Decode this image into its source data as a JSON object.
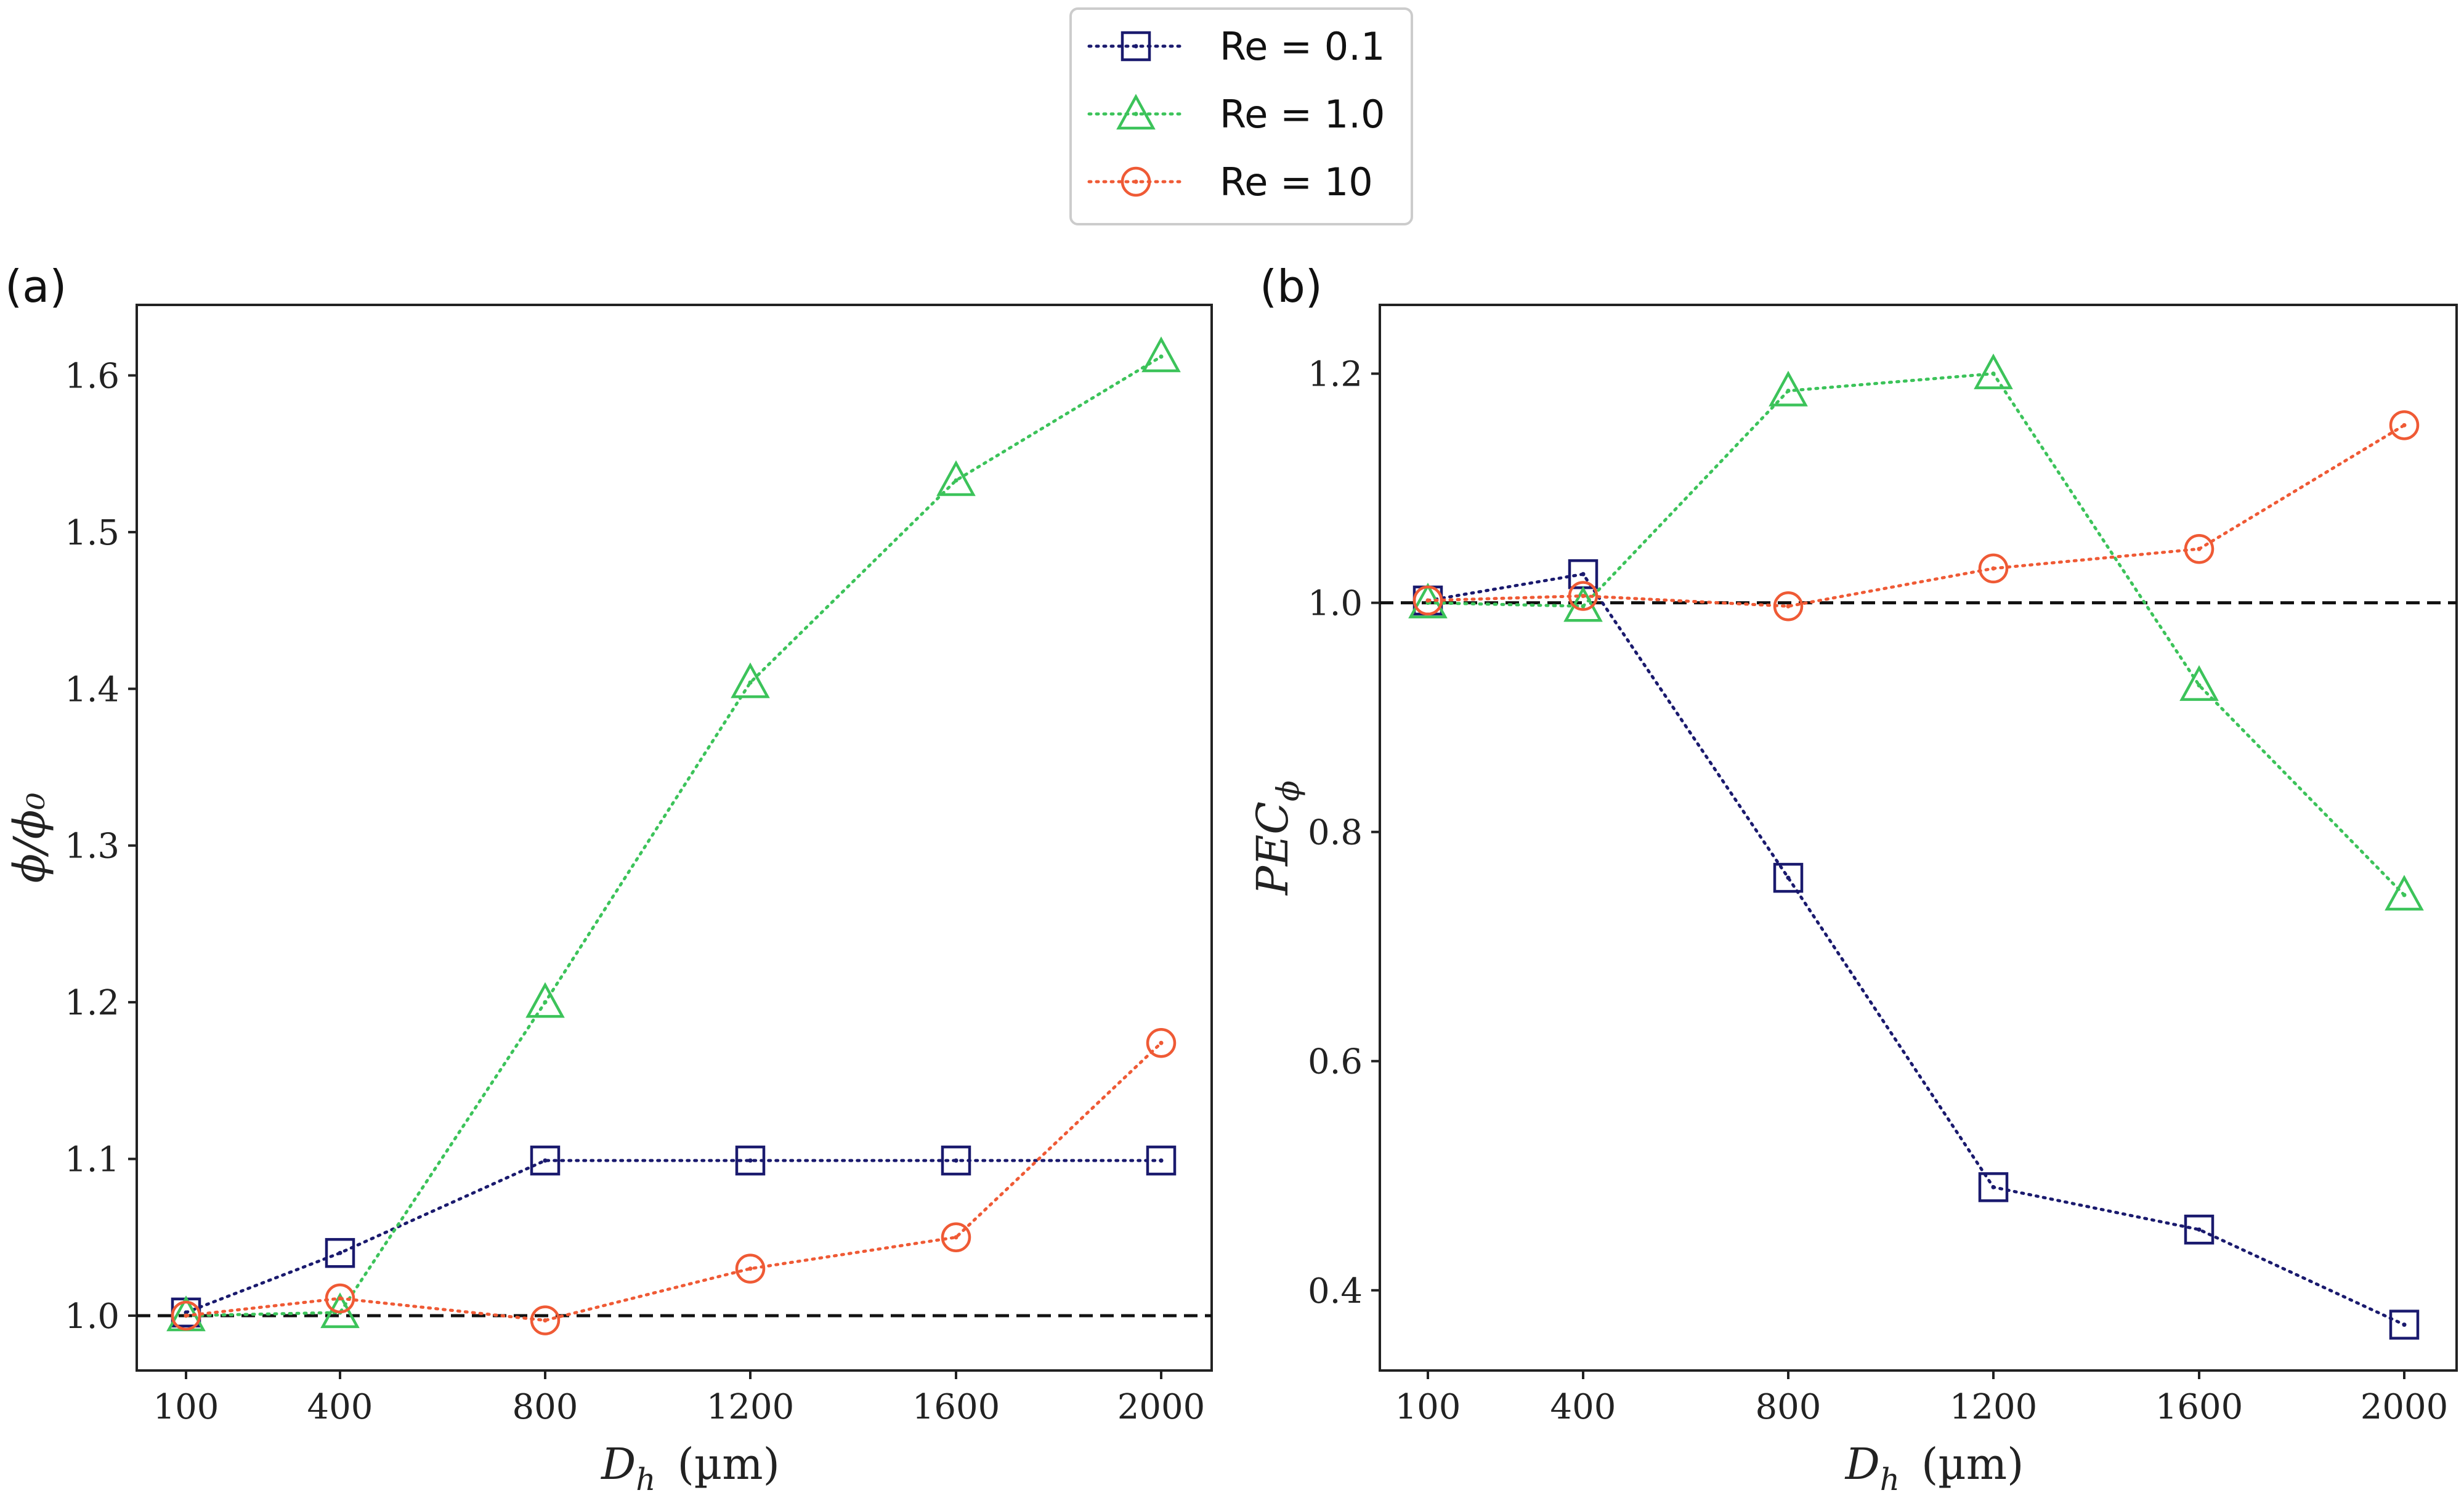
{
  "legend": {
    "entries": [
      {
        "label": "Re = 0.1",
        "color": "#1a1a6e",
        "marker": "square"
      },
      {
        "label": "Re = 1.0",
        "color": "#3cc35a",
        "marker": "triangle"
      },
      {
        "label": "Re = 10",
        "color": "#ef5a35",
        "marker": "circle"
      }
    ],
    "placement": "top-center"
  },
  "chart_data": [
    {
      "type": "line",
      "panel": "(a)",
      "xlabel": "D_h",
      "xunit": "(µm)",
      "ylabel": "ϕ/ϕ₀",
      "categories": [
        "100",
        "400",
        "800",
        "1200",
        "1600",
        "2000"
      ],
      "ylim": [
        0.965,
        1.645
      ],
      "yticks": [
        "1.0",
        "1.1",
        "1.2",
        "1.3",
        "1.4",
        "1.5",
        "1.6"
      ],
      "reference_line": 1.0,
      "grid": false,
      "series": [
        {
          "name": "Re = 0.1",
          "values": [
            1.002,
            1.04,
            1.099,
            1.099,
            1.099,
            1.099
          ]
        },
        {
          "name": "Re = 1.0",
          "values": [
            1.0,
            1.002,
            1.2,
            1.404,
            1.533,
            1.612
          ]
        },
        {
          "name": "Re = 10",
          "values": [
            1.0,
            1.011,
            0.997,
            1.03,
            1.05,
            1.174
          ]
        }
      ]
    },
    {
      "type": "line",
      "panel": "(b)",
      "xlabel": "D_h",
      "xunit": "(µm)",
      "ylabel": "PEC_ϕ",
      "categories": [
        "100",
        "400",
        "800",
        "1200",
        "1600",
        "2000"
      ],
      "ylim": [
        0.33,
        1.26
      ],
      "yticks": [
        "0.4",
        "0.6",
        "0.8",
        "1.0",
        "1.2"
      ],
      "reference_line": 1.0,
      "grid": false,
      "series": [
        {
          "name": "Re = 0.1",
          "values": [
            1.002,
            1.025,
            0.76,
            0.49,
            0.453,
            0.37
          ]
        },
        {
          "name": "Re = 1.0",
          "values": [
            1.0,
            0.997,
            1.185,
            1.2,
            0.928,
            0.745
          ]
        },
        {
          "name": "Re = 10",
          "values": [
            1.002,
            1.006,
            0.997,
            1.03,
            1.047,
            1.155
          ]
        }
      ]
    }
  ]
}
